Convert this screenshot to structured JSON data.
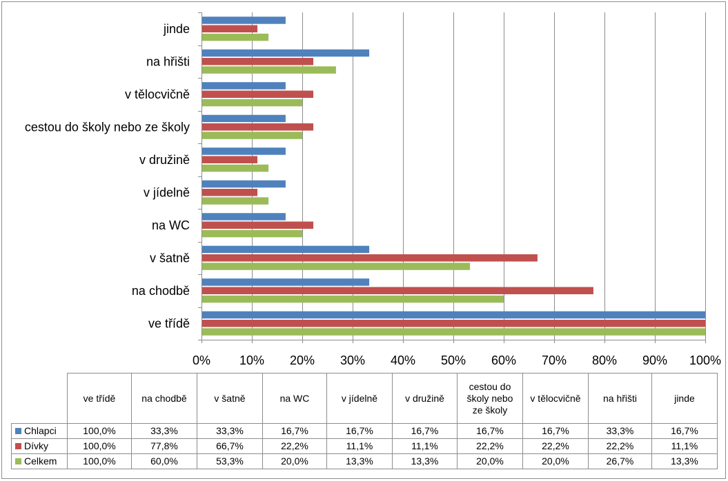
{
  "chart_data": {
    "type": "bar",
    "orientation": "horizontal",
    "categories": [
      "ve třídě",
      "na chodbě",
      "v šatně",
      "na WC",
      "v jídelně",
      "v družině",
      "cestou do školy nebo ze školy",
      "v tělocvičně",
      "na hřišti",
      "jinde"
    ],
    "table_headers": [
      "ve třídě",
      "na chodbě",
      "v šatně",
      "na WC",
      "v jídelně",
      "v družině",
      "cestou do\nškoly nebo\nze školy",
      "v tělocvičně",
      "na hřišti",
      "jinde"
    ],
    "series": [
      {
        "name": "Chlapci",
        "color": "#4f81bd",
        "values": [
          100.0,
          33.3,
          33.3,
          16.7,
          16.7,
          16.7,
          16.7,
          16.7,
          33.3,
          16.7
        ],
        "labels": [
          "100,0%",
          "33,3%",
          "33,3%",
          "16,7%",
          "16,7%",
          "16,7%",
          "16,7%",
          "16,7%",
          "33,3%",
          "16,7%"
        ]
      },
      {
        "name": "Dívky",
        "color": "#c0504d",
        "values": [
          100.0,
          77.8,
          66.7,
          22.2,
          11.1,
          11.1,
          22.2,
          22.2,
          22.2,
          11.1
        ],
        "labels": [
          "100,0%",
          "77,8%",
          "66,7%",
          "22,2%",
          "11,1%",
          "11,1%",
          "22,2%",
          "22,2%",
          "22,2%",
          "11,1%"
        ]
      },
      {
        "name": "Celkem",
        "color": "#9bbb59",
        "values": [
          100.0,
          60.0,
          53.3,
          20.0,
          13.3,
          13.3,
          20.0,
          20.0,
          26.7,
          13.3
        ],
        "labels": [
          "100,0%",
          "60,0%",
          "53,3%",
          "20,0%",
          "13,3%",
          "13,3%",
          "20,0%",
          "20,0%",
          "26,7%",
          "13,3%"
        ]
      }
    ],
    "xlim": [
      0,
      100
    ],
    "x_ticks": [
      0,
      10,
      20,
      30,
      40,
      50,
      60,
      70,
      80,
      90,
      100
    ],
    "x_tick_labels": [
      "0%",
      "10%",
      "20%",
      "30%",
      "40%",
      "50%",
      "60%",
      "70%",
      "80%",
      "90%",
      "100%"
    ],
    "grid": true,
    "legend": "data-table"
  }
}
